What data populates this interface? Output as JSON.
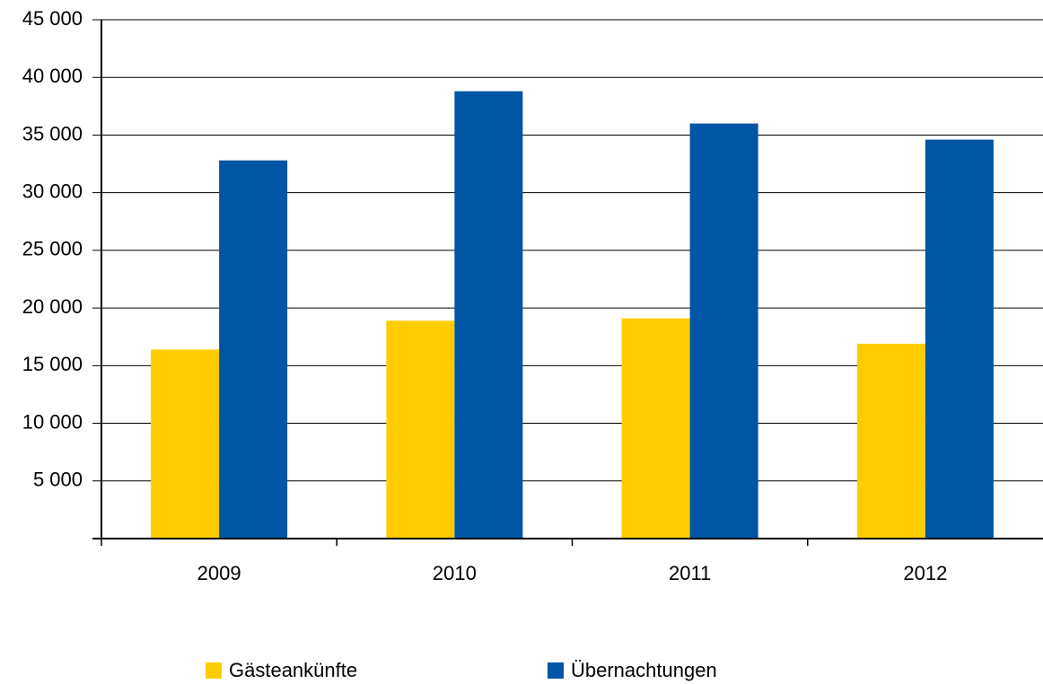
{
  "chart_data": {
    "type": "bar",
    "categories": [
      "2009",
      "2010",
      "2011",
      "2012"
    ],
    "series": [
      {
        "name": "Gästeankünfte",
        "color": "#ffcc00",
        "values": [
          16400,
          18900,
          19100,
          16900
        ]
      },
      {
        "name": "Übernachtungen",
        "color": "#0055a4",
        "values": [
          32800,
          38800,
          36000,
          34600
        ]
      }
    ],
    "ylim": [
      0,
      45000
    ],
    "yticks": [
      {
        "value": 5000,
        "label": "5 000"
      },
      {
        "value": 10000,
        "label": "10 000"
      },
      {
        "value": 15000,
        "label": "15 000"
      },
      {
        "value": 20000,
        "label": "20 000"
      },
      {
        "value": 25000,
        "label": "25 000"
      },
      {
        "value": 30000,
        "label": "30 000"
      },
      {
        "value": 35000,
        "label": "35 000"
      },
      {
        "value": 40000,
        "label": "40 000"
      },
      {
        "value": 45000,
        "label": "45 000"
      }
    ],
    "grid": true
  }
}
